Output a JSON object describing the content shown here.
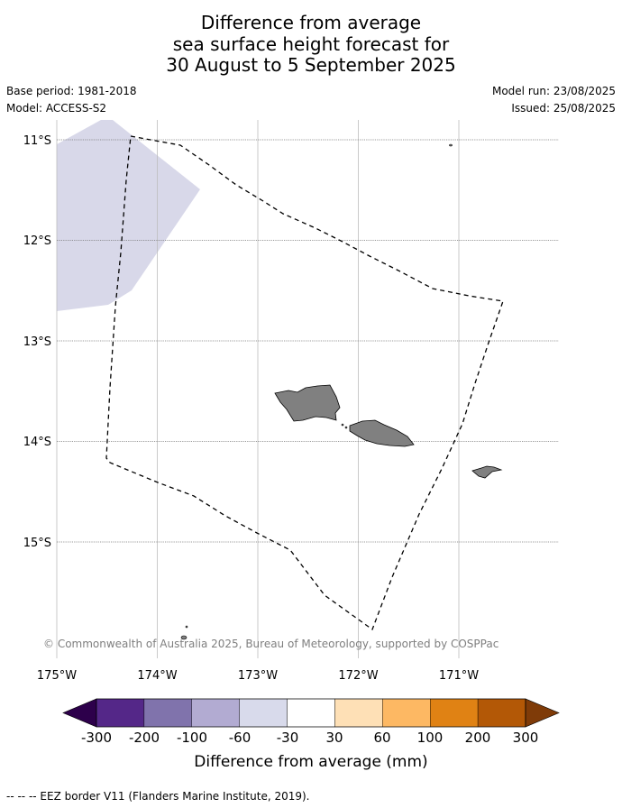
{
  "title": {
    "line1": "Difference from average",
    "line2": "sea surface height forecast for",
    "line3": "30 August to 5 September 2025"
  },
  "meta_left": {
    "base_period": "Base period: 1981-2018",
    "model": "Model: ACCESS-S2"
  },
  "meta_right": {
    "model_run": "Model run: 23/08/2025",
    "issued": "Issued: 25/08/2025"
  },
  "map": {
    "lat_labels": [
      "11°S",
      "12°S",
      "13°S",
      "14°S",
      "15°S"
    ],
    "lon_labels": [
      "175°W",
      "174°W",
      "173°W",
      "172°W",
      "171°W"
    ],
    "copyright": "© Commonwealth of Australia 2025, Bureau of Meteorology, supported by COSPPac",
    "anomaly_fill_color": "#d8d8e9",
    "land_color": "#808080"
  },
  "colorbar": {
    "title": "Difference from average (mm)",
    "labels": [
      "-300",
      "-200",
      "-100",
      "-60",
      "-30",
      "30",
      "60",
      "100",
      "200",
      "300"
    ],
    "under_color": "#2d004b",
    "over_color": "#7f3b08",
    "colors": [
      "#542788",
      "#8073ac",
      "#b2abd2",
      "#d8daeb",
      "#ffffff",
      "#fee0b6",
      "#fdb863",
      "#e08214",
      "#b35806"
    ]
  },
  "footer": "--  --  -- EEZ border V11 (Flanders Marine Institute, 2019)."
}
